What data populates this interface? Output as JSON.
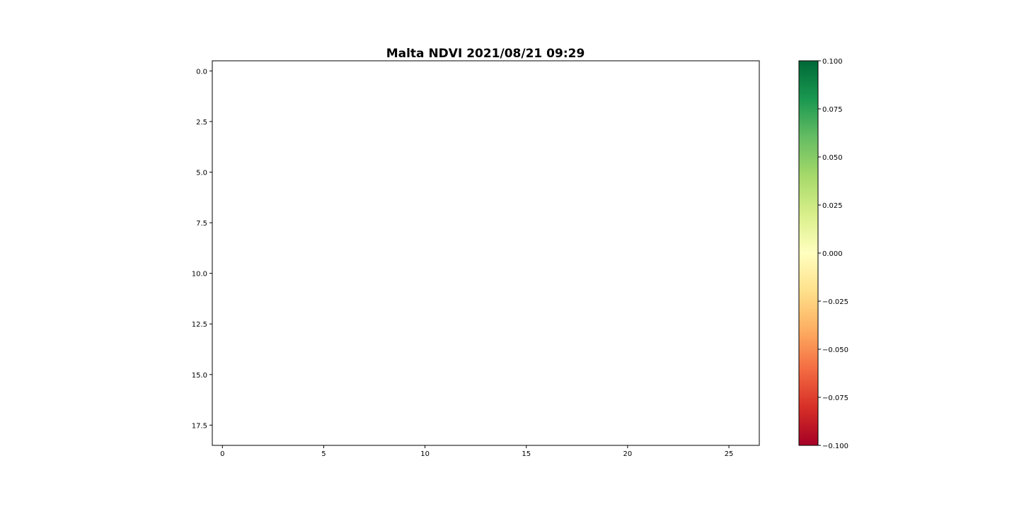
{
  "chart_data": {
    "type": "heatmap",
    "title": "Malta NDVI 2021/08/21 09:29",
    "xlabel": "",
    "ylabel": "",
    "x_range": [
      -0.5,
      26.5
    ],
    "y_range": [
      18.5,
      -0.5
    ],
    "y_inverted": true,
    "x_ticks": [
      0,
      5,
      10,
      15,
      20,
      25
    ],
    "x_tick_labels": [
      "0",
      "5",
      "10",
      "15",
      "20",
      "25"
    ],
    "y_ticks": [
      0.0,
      2.5,
      5.0,
      7.5,
      10.0,
      12.5,
      15.0,
      17.5
    ],
    "y_tick_labels": [
      "0.0",
      "2.5",
      "5.0",
      "7.5",
      "10.0",
      "12.5",
      "15.0",
      "17.5"
    ],
    "values": [],
    "grid": false,
    "colorbar": {
      "colormap": "RdYlGn",
      "range": [
        -0.1,
        0.1
      ],
      "ticks": [
        0.1,
        0.075,
        0.05,
        0.025,
        0.0,
        -0.025,
        -0.05,
        -0.075,
        -0.1
      ],
      "tick_labels": [
        "0.100",
        "0.075",
        "0.050",
        "0.025",
        "0.000",
        "−0.025",
        "−0.050",
        "−0.075",
        "−0.100"
      ],
      "colors": [
        "#a50026",
        "#d73027",
        "#f46d43",
        "#fdae61",
        "#fee08b",
        "#ffffbf",
        "#d9ef8b",
        "#a6d96a",
        "#66bd63",
        "#1a9850",
        "#006837"
      ]
    }
  }
}
